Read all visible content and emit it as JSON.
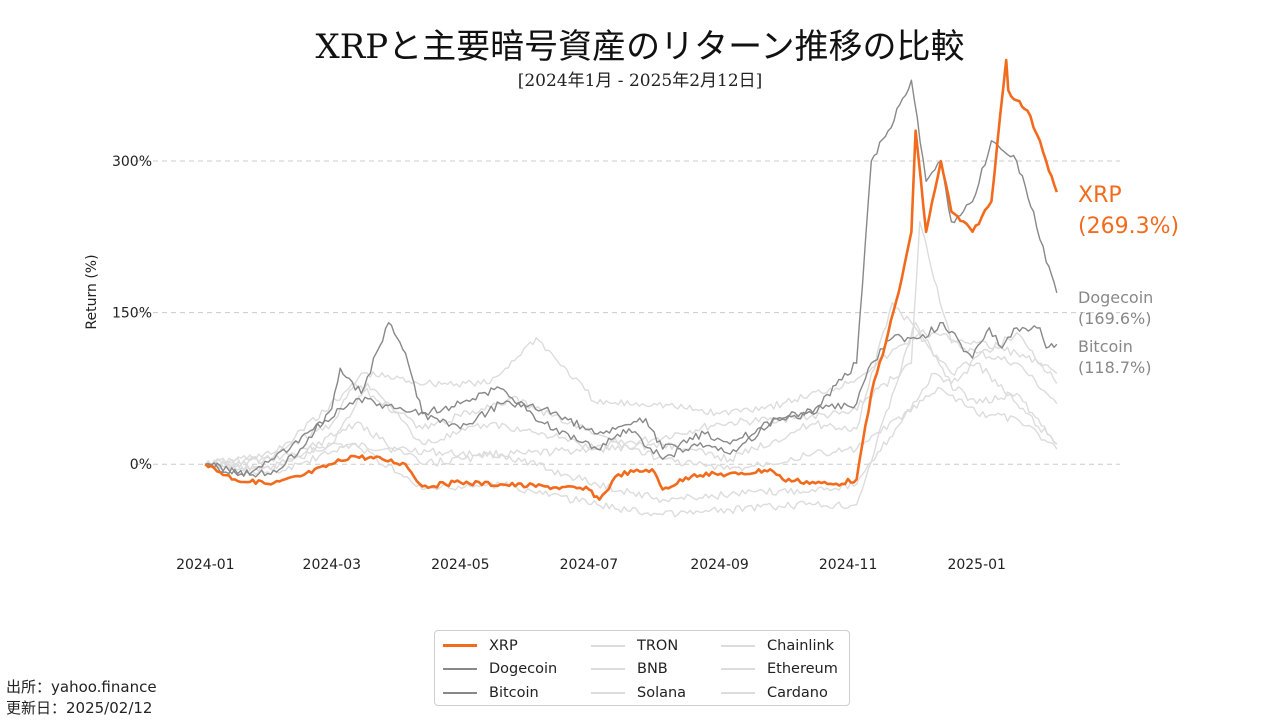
{
  "title": "XRPと主要暗号資産のリターン推移の比較",
  "subtitle": "[2024年1月 - 2025年2月12日]",
  "source_lines": [
    "出所：yahoo.finance",
    "更新日：2025/02/12"
  ],
  "colors": {
    "highlight": "#f26b1d",
    "dark_series": "#888888",
    "light_series": "#dcdcdc",
    "grid": "#cccccc"
  },
  "chart_data": {
    "type": "line",
    "title": "XRPと主要暗号資産のリターン推移の比較",
    "subtitle": "[2024年1月 - 2025年2月12日]",
    "xlabel": "",
    "ylabel": "Return (%)",
    "x_ticks": [
      "2024-01-01",
      "2024-03-01",
      "2024-05-01",
      "2024-07-01",
      "2024-09-01",
      "2024-11-01",
      "2025-01-01"
    ],
    "x_tick_labels": [
      "2024-01",
      "2024-03",
      "2024-05",
      "2024-07",
      "2024-09",
      "2024-11",
      "2025-01"
    ],
    "y_ticks": [
      0,
      150,
      300
    ],
    "y_tick_labels": [
      "0%",
      "150%",
      "300%"
    ],
    "ylim": [
      -75,
      400
    ],
    "xlim": [
      "2023-12-01",
      "2025-03-10"
    ],
    "grid": "horizontal dashed",
    "legend_position": "bottom-center",
    "end_labels": [
      {
        "series": "XRP",
        "text": "XRP",
        "value_text": "(269.3%)"
      },
      {
        "series": "Dogecoin",
        "text": "Dogecoin",
        "value_text": "(169.6%)"
      },
      {
        "series": "Bitcoin",
        "text": "Bitcoin",
        "value_text": "(118.7%)"
      }
    ],
    "series": [
      {
        "name": "XRP",
        "style": "highlight",
        "x": [
          "2024-01-01",
          "2024-01-15",
          "2024-02-01",
          "2024-02-15",
          "2024-03-01",
          "2024-03-10",
          "2024-03-25",
          "2024-04-05",
          "2024-04-13",
          "2024-05-01",
          "2024-05-20",
          "2024-06-10",
          "2024-07-01",
          "2024-07-06",
          "2024-07-15",
          "2024-07-31",
          "2024-08-05",
          "2024-08-20",
          "2024-09-10",
          "2024-09-25",
          "2024-10-01",
          "2024-10-25",
          "2024-11-05",
          "2024-11-12",
          "2024-11-20",
          "2024-11-25",
          "2024-12-01",
          "2024-12-03",
          "2024-12-08",
          "2024-12-15",
          "2024-12-20",
          "2024-12-30",
          "2025-01-08",
          "2025-01-15",
          "2025-01-16",
          "2025-01-20",
          "2025-01-25",
          "2025-01-31",
          "2025-02-03",
          "2025-02-08"
        ],
        "y": [
          0,
          -15,
          -20,
          -12,
          0,
          8,
          5,
          0,
          -22,
          -18,
          -20,
          -22,
          -25,
          -35,
          -10,
          -5,
          -25,
          -10,
          -10,
          -5,
          -15,
          -20,
          -15,
          70,
          130,
          170,
          230,
          330,
          230,
          300,
          250,
          230,
          260,
          400,
          370,
          360,
          350,
          320,
          300,
          269.3
        ]
      },
      {
        "name": "Dogecoin",
        "style": "dark",
        "x": [
          "2024-01-01",
          "2024-01-15",
          "2024-02-01",
          "2024-02-15",
          "2024-03-01",
          "2024-03-05",
          "2024-03-15",
          "2024-03-28",
          "2024-04-05",
          "2024-04-13",
          "2024-05-01",
          "2024-05-20",
          "2024-06-10",
          "2024-07-05",
          "2024-07-20",
          "2024-08-05",
          "2024-08-20",
          "2024-09-06",
          "2024-09-28",
          "2024-10-15",
          "2024-11-05",
          "2024-11-12",
          "2024-11-20",
          "2024-12-01",
          "2024-12-08",
          "2024-12-15",
          "2024-12-20",
          "2024-12-30",
          "2025-01-08",
          "2025-01-20",
          "2025-01-28",
          "2025-02-03",
          "2025-02-08"
        ],
        "y": [
          0,
          -8,
          -10,
          15,
          55,
          95,
          70,
          140,
          110,
          50,
          60,
          75,
          40,
          15,
          35,
          5,
          20,
          10,
          45,
          50,
          100,
          300,
          330,
          380,
          280,
          300,
          240,
          260,
          320,
          300,
          250,
          200,
          169.6
        ]
      },
      {
        "name": "Bitcoin",
        "style": "dark",
        "x": [
          "2024-01-01",
          "2024-01-22",
          "2024-02-10",
          "2024-03-05",
          "2024-03-14",
          "2024-04-01",
          "2024-04-20",
          "2024-05-01",
          "2024-05-20",
          "2024-06-10",
          "2024-07-05",
          "2024-07-28",
          "2024-08-05",
          "2024-08-25",
          "2024-09-06",
          "2024-09-28",
          "2024-10-20",
          "2024-11-05",
          "2024-11-12",
          "2024-11-22",
          "2024-12-05",
          "2024-12-16",
          "2024-12-30",
          "2025-01-07",
          "2025-01-13",
          "2025-01-20",
          "2025-01-31",
          "2025-02-03",
          "2025-02-08"
        ],
        "y": [
          0,
          -10,
          15,
          55,
          65,
          55,
          45,
          35,
          60,
          55,
          30,
          45,
          15,
          30,
          20,
          45,
          55,
          60,
          100,
          125,
          125,
          140,
          105,
          135,
          115,
          135,
          135,
          115,
          118.7
        ]
      },
      {
        "name": "TRON",
        "style": "light",
        "x": [
          "2024-01-01",
          "2024-02-01",
          "2024-03-01",
          "2024-04-01",
          "2024-05-01",
          "2024-06-01",
          "2024-07-01",
          "2024-08-01",
          "2024-09-01",
          "2024-10-01",
          "2024-11-01",
          "2024-12-01",
          "2024-12-05",
          "2024-12-20",
          "2025-01-01",
          "2025-01-20",
          "2025-02-08"
        ],
        "y": [
          0,
          5,
          20,
          15,
          10,
          10,
          15,
          25,
          40,
          45,
          50,
          100,
          240,
          120,
          110,
          100,
          60
        ]
      },
      {
        "name": "BNB",
        "style": "light",
        "x": [
          "2024-01-01",
          "2024-02-01",
          "2024-03-01",
          "2024-03-15",
          "2024-04-15",
          "2024-05-15",
          "2024-06-06",
          "2024-07-05",
          "2024-08-01",
          "2024-09-01",
          "2024-10-01",
          "2024-11-01",
          "2024-12-05",
          "2025-01-01",
          "2025-01-20",
          "2025-02-08"
        ],
        "y": [
          0,
          10,
          40,
          90,
          80,
          80,
          125,
          60,
          60,
          50,
          60,
          80,
          130,
          120,
          110,
          90
        ]
      },
      {
        "name": "Solana",
        "style": "light",
        "x": [
          "2024-01-01",
          "2024-02-01",
          "2024-03-01",
          "2024-03-18",
          "2024-04-13",
          "2024-05-15",
          "2024-06-10",
          "2024-07-05",
          "2024-08-05",
          "2024-09-06",
          "2024-10-15",
          "2024-11-05",
          "2024-11-22",
          "2024-12-20",
          "2025-01-20",
          "2025-02-08"
        ],
        "y": [
          0,
          -5,
          20,
          80,
          20,
          40,
          30,
          15,
          20,
          5,
          40,
          35,
          160,
          90,
          130,
          80
        ]
      },
      {
        "name": "Chainlink",
        "style": "light",
        "x": [
          "2024-01-01",
          "2024-02-01",
          "2024-03-12",
          "2024-04-13",
          "2024-05-20",
          "2024-07-05",
          "2024-08-05",
          "2024-09-06",
          "2024-10-15",
          "2024-11-05",
          "2024-12-12",
          "2025-01-01",
          "2025-01-20",
          "2025-02-08"
        ],
        "y": [
          0,
          -5,
          40,
          0,
          10,
          -20,
          -35,
          -30,
          -25,
          -20,
          90,
          60,
          70,
          20
        ]
      },
      {
        "name": "Ethereum",
        "style": "light",
        "x": [
          "2024-01-01",
          "2024-02-01",
          "2024-03-12",
          "2024-04-13",
          "2024-05-25",
          "2024-07-05",
          "2024-08-05",
          "2024-09-06",
          "2024-10-15",
          "2024-11-05",
          "2024-12-15",
          "2025-01-01",
          "2025-01-20",
          "2025-02-08"
        ],
        "y": [
          0,
          5,
          80,
          35,
          65,
          30,
          5,
          -5,
          10,
          15,
          75,
          50,
          45,
          15
        ]
      },
      {
        "name": "Cardano",
        "style": "light",
        "x": [
          "2024-01-01",
          "2024-02-01",
          "2024-03-12",
          "2024-04-13",
          "2024-05-20",
          "2024-07-05",
          "2024-08-05",
          "2024-09-06",
          "2024-10-15",
          "2024-11-05",
          "2024-12-03",
          "2024-12-20",
          "2025-01-01",
          "2025-01-20",
          "2025-02-08"
        ],
        "y": [
          0,
          -10,
          20,
          -25,
          -20,
          -40,
          -50,
          -45,
          -40,
          -40,
          140,
          80,
          100,
          60,
          20
        ]
      }
    ]
  },
  "legend": [
    {
      "label": "XRP",
      "style": "highlight"
    },
    {
      "label": "Dogecoin",
      "style": "dark"
    },
    {
      "label": "Bitcoin",
      "style": "dark"
    },
    {
      "label": "TRON",
      "style": "light"
    },
    {
      "label": "BNB",
      "style": "light"
    },
    {
      "label": "Solana",
      "style": "light"
    },
    {
      "label": "Chainlink",
      "style": "light"
    },
    {
      "label": "Ethereum",
      "style": "light"
    },
    {
      "label": "Cardano",
      "style": "light"
    }
  ]
}
